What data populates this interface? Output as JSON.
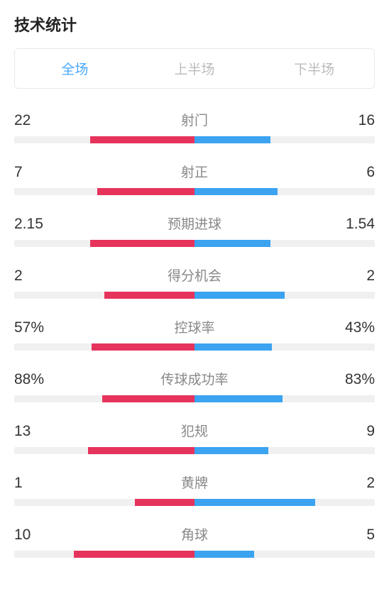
{
  "title": "技术统计",
  "colors": {
    "left": "#e6335c",
    "right": "#3ba3f0",
    "track": "#f0f0f0",
    "tab_active": "#4aa8ff",
    "tab_inactive": "#bbbbbb",
    "label": "#888888",
    "value": "#333333"
  },
  "tabs": [
    {
      "label": "全场",
      "active": true
    },
    {
      "label": "上半场",
      "active": false
    },
    {
      "label": "下半场",
      "active": false
    }
  ],
  "stats": [
    {
      "label": "射门",
      "left_value": "22",
      "right_value": "16",
      "left_pct": 58,
      "right_pct": 42
    },
    {
      "label": "射正",
      "left_value": "7",
      "right_value": "6",
      "left_pct": 54,
      "right_pct": 46
    },
    {
      "label": "预期进球",
      "left_value": "2.15",
      "right_value": "1.54",
      "left_pct": 58,
      "right_pct": 42
    },
    {
      "label": "得分机会",
      "left_value": "2",
      "right_value": "2",
      "left_pct": 50,
      "right_pct": 50
    },
    {
      "label": "控球率",
      "left_value": "57%",
      "right_value": "43%",
      "left_pct": 57,
      "right_pct": 43
    },
    {
      "label": "传球成功率",
      "left_value": "88%",
      "right_value": "83%",
      "left_pct": 51,
      "right_pct": 49
    },
    {
      "label": "犯规",
      "left_value": "13",
      "right_value": "9",
      "left_pct": 59,
      "right_pct": 41
    },
    {
      "label": "黄牌",
      "left_value": "1",
      "right_value": "2",
      "left_pct": 33,
      "right_pct": 67
    },
    {
      "label": "角球",
      "left_value": "10",
      "right_value": "5",
      "left_pct": 67,
      "right_pct": 33
    }
  ]
}
